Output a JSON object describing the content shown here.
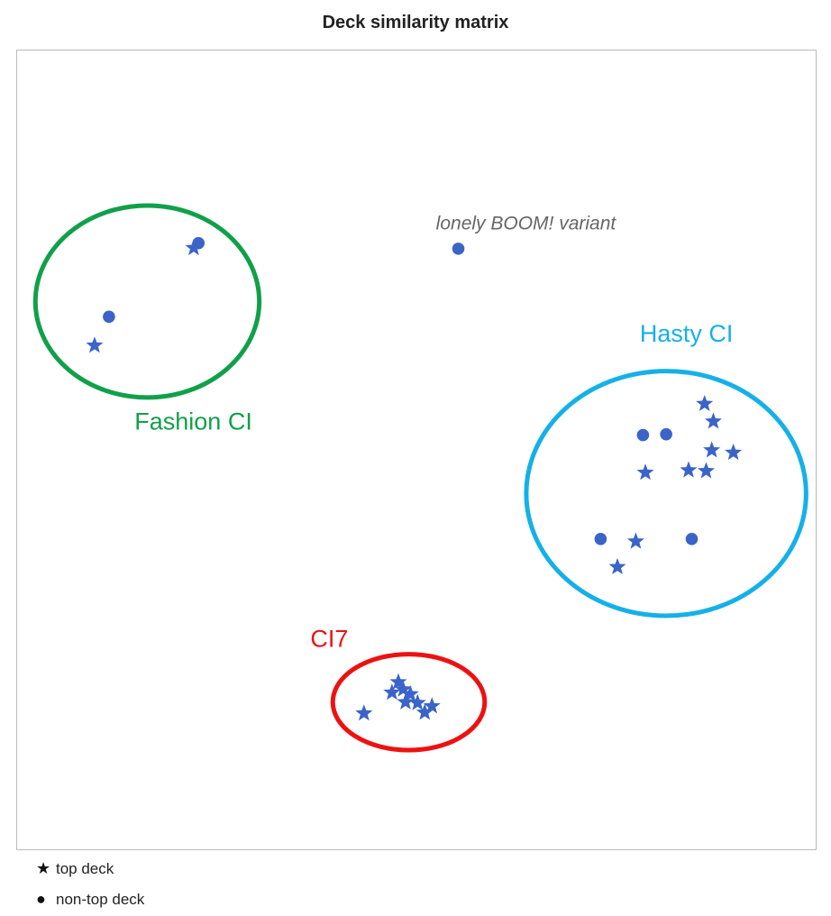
{
  "chart_data": {
    "type": "scatter",
    "title": "Deck similarity matrix",
    "xlabel": "",
    "ylabel": "",
    "xlim": [
      0,
      100
    ],
    "ylim": [
      0,
      100
    ],
    "grid": false,
    "axis_ticks": false,
    "marker_color": "#3a64c8",
    "series": [
      {
        "name": "top deck",
        "marker": "star",
        "points": [
          [
            22.2,
            75.2
          ],
          [
            9.8,
            63.0
          ],
          [
            86.1,
            55.7
          ],
          [
            87.2,
            53.5
          ],
          [
            87.0,
            49.9
          ],
          [
            89.7,
            49.6
          ],
          [
            78.7,
            47.1
          ],
          [
            84.1,
            47.4
          ],
          [
            86.3,
            47.3
          ],
          [
            77.5,
            38.5
          ],
          [
            75.2,
            35.3
          ],
          [
            43.5,
            17.0
          ],
          [
            47.8,
            20.9
          ],
          [
            48.4,
            20.0
          ],
          [
            47.0,
            19.6
          ],
          [
            49.3,
            19.4
          ],
          [
            48.7,
            18.4
          ],
          [
            50.2,
            18.3
          ],
          [
            52.0,
            17.9
          ],
          [
            51.1,
            17.1
          ]
        ]
      },
      {
        "name": "non-top deck",
        "marker": "circle",
        "points": [
          [
            22.8,
            75.8
          ],
          [
            11.6,
            66.6
          ],
          [
            55.3,
            75.1
          ],
          [
            78.4,
            51.8
          ],
          [
            81.3,
            51.9
          ],
          [
            73.1,
            38.8
          ],
          [
            84.5,
            38.8
          ]
        ]
      }
    ],
    "annotations": [
      {
        "name": "fashion-ci",
        "text": "Fashion CI",
        "color": "#11a04a",
        "ellipse": {
          "cx": 16.4,
          "cy": 68.5,
          "rx": 14.0,
          "ry": 12.0
        },
        "label_at": [
          14.8,
          52.5
        ]
      },
      {
        "name": "hasty-ci",
        "text": "Hasty CI",
        "color": "#15b0e8",
        "ellipse": {
          "cx": 81.3,
          "cy": 44.5,
          "rx": 17.5,
          "ry": 15.3
        },
        "label_at": [
          78.0,
          63.5
        ]
      },
      {
        "name": "ci7",
        "text": "CI7",
        "color": "#ee1111",
        "ellipse": {
          "cx": 49.1,
          "cy": 18.4,
          "rx": 9.5,
          "ry": 6.0
        },
        "label_at": [
          36.8,
          25.3
        ]
      },
      {
        "name": "lonely-boom-variant",
        "text": "lonely BOOM! variant",
        "color": "#666666",
        "italic": true,
        "label_at": [
          52.5,
          77.5
        ]
      }
    ],
    "legend": {
      "placement": "bottom-left",
      "entries": [
        {
          "symbol": "★",
          "label": "top deck"
        },
        {
          "symbol": "●",
          "label": "non-top deck"
        }
      ]
    }
  }
}
